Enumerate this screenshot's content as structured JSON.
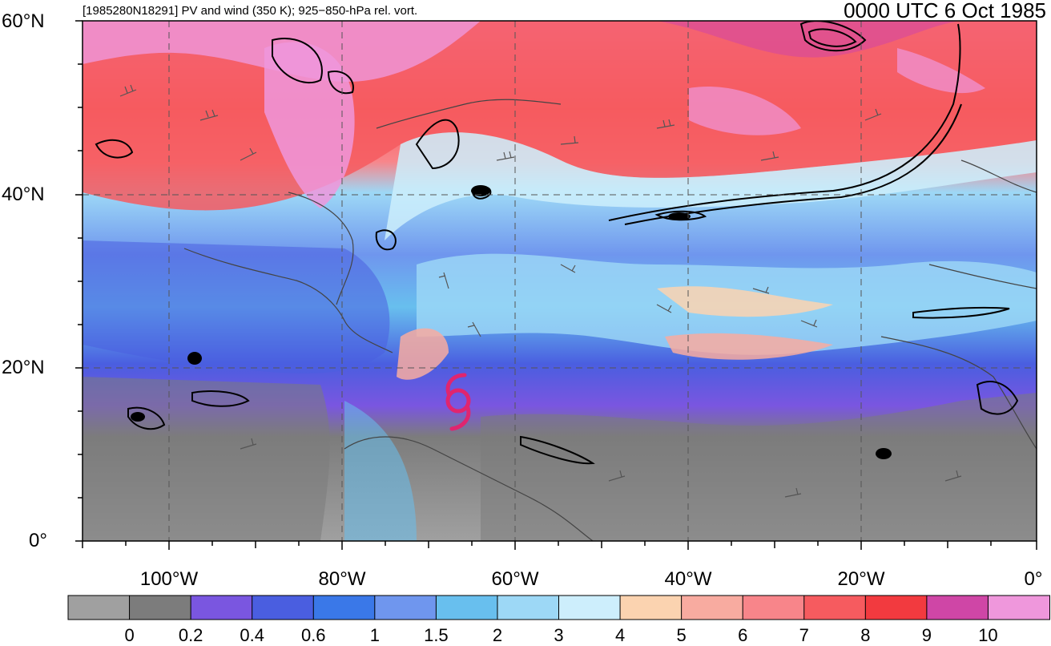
{
  "header": {
    "left_title": "[1985280N18291] PV and wind (350 K); 925−850-hPa rel. vort.",
    "right_title": "0000 UTC 6 Oct 1985"
  },
  "map": {
    "lat_labels": [
      "60°N",
      "40°N",
      "20°N",
      "0°"
    ],
    "lon_labels": [
      "100°W",
      "80°W",
      "60°W",
      "40°W",
      "20°W",
      "0°"
    ],
    "storm_symbol": "tropical-cyclone-icon",
    "storm_color": "#e0256f"
  },
  "colorbar": {
    "colors": [
      "#a0a0a0",
      "#7c7c7c",
      "#7a56e0",
      "#4a5ee0",
      "#3a78e8",
      "#6f96ee",
      "#68bfee",
      "#9dd8f6",
      "#cdeefc",
      "#fbd3b0",
      "#f8aba0",
      "#f8858a",
      "#f65b5f",
      "#f23a3f",
      "#cf46a6",
      "#ef97dc"
    ],
    "tick_labels": [
      "0",
      "0.2",
      "0.4",
      "0.6",
      "1",
      "1.5",
      "2",
      "3",
      "4",
      "5",
      "6",
      "7",
      "8",
      "9",
      "10"
    ]
  }
}
